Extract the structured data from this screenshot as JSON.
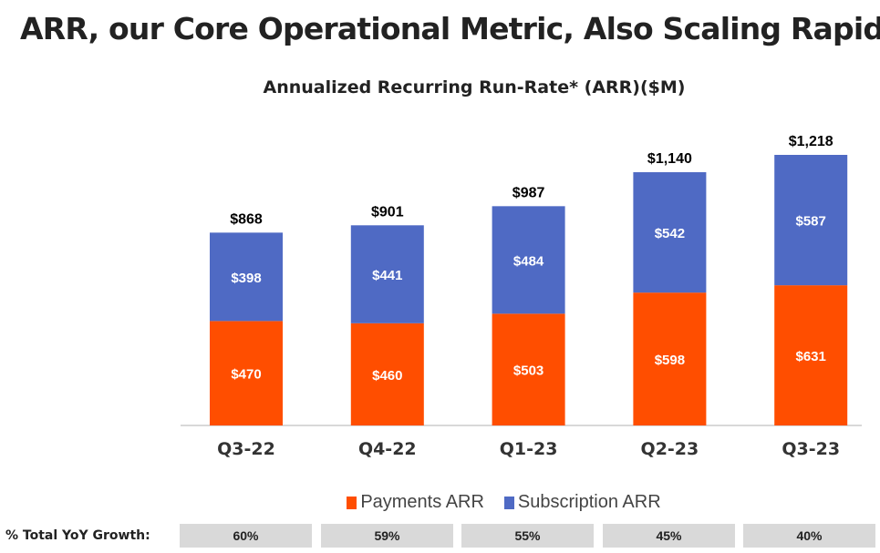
{
  "title": "ARR, our Core Operational Metric, Also Scaling Rapidly",
  "colors": {
    "payments": "#FF4E00",
    "subscription": "#4F6AC4"
  },
  "chart_data": {
    "type": "bar",
    "stacked": true,
    "title": "Annualized Recurring Run-Rate* (ARR)($M)",
    "categories": [
      "Q3-22",
      "Q4-22",
      "Q1-23",
      "Q2-23",
      "Q3-23"
    ],
    "series": [
      {
        "name": "Payments ARR",
        "values": [
          470,
          460,
          503,
          598,
          631
        ],
        "labels": [
          "$470",
          "$460",
          "$503",
          "$598",
          "$631"
        ]
      },
      {
        "name": "Subscription ARR",
        "values": [
          398,
          441,
          484,
          542,
          587
        ],
        "labels": [
          "$398",
          "$441",
          "$484",
          "$542",
          "$587"
        ]
      }
    ],
    "totals": [
      868,
      901,
      987,
      1140,
      1218
    ],
    "total_labels": [
      "$868",
      "$901",
      "$987",
      "$1,140",
      "$1,218"
    ],
    "legend": "bottom",
    "grid": false
  },
  "growth": {
    "label": "% Total YoY Growth:",
    "values": [
      "60%",
      "59%",
      "55%",
      "45%",
      "40%"
    ]
  }
}
